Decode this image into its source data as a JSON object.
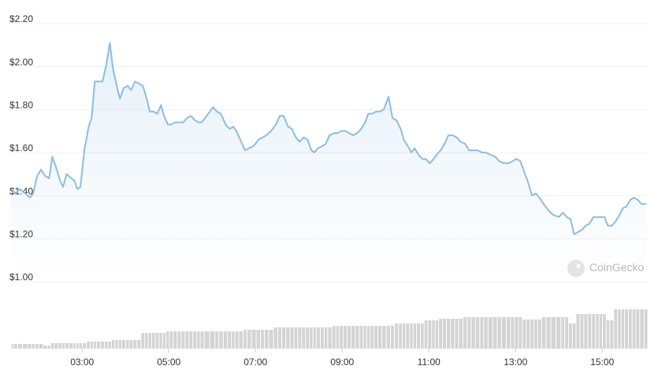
{
  "chart_data": {
    "type": "line",
    "watermark": "CoinGecko",
    "x": [
      1.36,
      1.47,
      1.56,
      1.69,
      1.8,
      1.87,
      1.96,
      2.05,
      2.15,
      2.24,
      2.31,
      2.4,
      2.49,
      2.56,
      2.64,
      2.75,
      2.82,
      2.89,
      2.96,
      3.05,
      3.15,
      3.22,
      3.29,
      3.38,
      3.47,
      3.56,
      3.64,
      3.71,
      3.8,
      3.87,
      3.96,
      4.05,
      4.13,
      4.22,
      4.31,
      4.4,
      4.49,
      4.56,
      4.65,
      4.73,
      4.82,
      4.89,
      4.98,
      5.05,
      5.15,
      5.24,
      5.33,
      5.42,
      5.51,
      5.6,
      5.69,
      5.76,
      5.87,
      6.02,
      6.11,
      6.2,
      6.31,
      6.4,
      6.49,
      6.56,
      6.67,
      6.76,
      6.85,
      6.96,
      7.07,
      7.16,
      7.25,
      7.36,
      7.47,
      7.56,
      7.65,
      7.75,
      7.84,
      7.93,
      8.02,
      8.11,
      8.2,
      8.29,
      8.36,
      8.44,
      8.55,
      8.62,
      8.71,
      8.82,
      8.89,
      8.98,
      9.07,
      9.16,
      9.25,
      9.35,
      9.44,
      9.53,
      9.6,
      9.69,
      9.78,
      9.87,
      9.96,
      10.07,
      10.16,
      10.25,
      10.35,
      10.42,
      10.51,
      10.6,
      10.67,
      10.76,
      10.85,
      10.93,
      11.02,
      11.11,
      11.18,
      11.27,
      11.36,
      11.45,
      11.55,
      11.64,
      11.73,
      11.84,
      11.93,
      12.02,
      12.13,
      12.22,
      12.31,
      12.42,
      12.53,
      12.62,
      12.73,
      12.84,
      12.93,
      13.02,
      13.11,
      13.2,
      13.29,
      13.38,
      13.47,
      13.55,
      13.65,
      13.76,
      13.87,
      14.0,
      14.09,
      14.18,
      14.27,
      14.35,
      14.44,
      14.53,
      14.62,
      14.71,
      14.8,
      14.89,
      14.96,
      15.05,
      15.13,
      15.22,
      15.31,
      15.4,
      15.47,
      15.56,
      15.65,
      15.73,
      15.82,
      15.91,
      16.02
    ],
    "series": [
      {
        "color": "#8bbde3",
        "values": [
          1.42,
          1.4,
          1.42,
          1.4,
          1.38,
          1.4,
          1.48,
          1.51,
          1.48,
          1.47,
          1.57,
          1.52,
          1.46,
          1.43,
          1.49,
          1.47,
          1.46,
          1.42,
          1.43,
          1.6,
          1.71,
          1.75,
          1.92,
          1.92,
          1.92,
          2.0,
          2.1,
          1.98,
          1.9,
          1.84,
          1.89,
          1.9,
          1.88,
          1.92,
          1.91,
          1.9,
          1.84,
          1.78,
          1.78,
          1.77,
          1.81,
          1.76,
          1.72,
          1.72,
          1.73,
          1.73,
          1.73,
          1.75,
          1.76,
          1.74,
          1.73,
          1.73,
          1.76,
          1.8,
          1.78,
          1.77,
          1.72,
          1.7,
          1.71,
          1.69,
          1.64,
          1.6,
          1.61,
          1.62,
          1.65,
          1.66,
          1.67,
          1.69,
          1.72,
          1.76,
          1.76,
          1.71,
          1.7,
          1.66,
          1.64,
          1.66,
          1.65,
          1.6,
          1.59,
          1.61,
          1.62,
          1.63,
          1.67,
          1.68,
          1.68,
          1.69,
          1.69,
          1.68,
          1.67,
          1.68,
          1.7,
          1.73,
          1.77,
          1.77,
          1.78,
          1.78,
          1.79,
          1.85,
          1.75,
          1.74,
          1.7,
          1.65,
          1.62,
          1.59,
          1.61,
          1.58,
          1.56,
          1.56,
          1.54,
          1.56,
          1.58,
          1.6,
          1.63,
          1.67,
          1.67,
          1.66,
          1.64,
          1.63,
          1.6,
          1.6,
          1.6,
          1.59,
          1.59,
          1.58,
          1.57,
          1.55,
          1.54,
          1.54,
          1.55,
          1.56,
          1.55,
          1.5,
          1.45,
          1.39,
          1.4,
          1.38,
          1.35,
          1.32,
          1.3,
          1.29,
          1.31,
          1.29,
          1.28,
          1.21,
          1.22,
          1.23,
          1.25,
          1.26,
          1.29,
          1.29,
          1.29,
          1.29,
          1.25,
          1.25,
          1.27,
          1.3,
          1.33,
          1.34,
          1.37,
          1.38,
          1.37,
          1.35,
          1.35
        ]
      },
      {
        "type": "bar",
        "axis": "y2",
        "color": "#d4d4d4",
        "values": [
          6,
          6,
          6,
          6,
          6,
          6,
          6,
          6,
          4,
          4,
          7,
          7,
          7,
          7,
          7,
          7,
          7,
          7,
          7,
          7,
          9,
          9,
          9,
          9,
          9,
          9,
          9,
          11,
          11,
          11,
          11,
          11,
          11,
          11,
          11,
          20,
          20,
          20,
          20,
          20,
          20,
          20,
          22,
          22,
          22,
          22,
          22,
          22,
          22,
          22,
          22,
          22,
          22,
          22,
          22,
          22,
          22,
          22,
          22,
          22,
          22,
          24,
          24,
          24,
          24,
          24,
          24,
          24,
          27,
          27,
          27,
          27,
          27,
          27,
          27,
          27,
          27,
          27,
          27,
          27,
          27,
          27,
          27,
          29,
          29,
          29,
          29,
          29,
          29,
          29,
          29,
          29,
          29,
          29,
          29,
          29,
          29,
          29,
          29,
          32,
          32,
          32,
          32,
          32,
          32,
          32,
          32,
          36,
          36,
          36,
          36,
          38,
          38,
          38,
          38,
          38,
          38,
          40,
          40,
          40,
          40,
          40,
          40,
          40,
          40,
          40,
          40,
          40,
          40,
          40,
          40,
          37,
          37,
          37,
          37,
          37,
          40,
          40,
          40,
          40,
          40,
          40,
          32,
          32,
          44,
          44,
          44,
          44,
          44,
          44,
          44,
          44,
          36,
          36,
          50,
          50,
          50,
          50,
          50,
          50,
          50,
          50,
          50
        ]
      }
    ],
    "xlim": [
      1.36,
      16.05
    ],
    "xticks": [
      {
        "value": 3,
        "label": "03:00"
      },
      {
        "value": 5,
        "label": "05:00"
      },
      {
        "value": 7,
        "label": "07:00"
      },
      {
        "value": 9,
        "label": "09:00"
      },
      {
        "value": 11,
        "label": "11:00"
      },
      {
        "value": 13,
        "label": "13:00"
      },
      {
        "value": 15,
        "label": "15:00"
      }
    ],
    "ylim": [
      1.0,
      2.2
    ],
    "yticks": [
      {
        "value": 1.0,
        "label": "$1.00"
      },
      {
        "value": 1.2,
        "label": "$1.20"
      },
      {
        "value": 1.4,
        "label": "$1.40"
      },
      {
        "value": 1.6,
        "label": "$1.60"
      },
      {
        "value": 1.8,
        "label": "$1.80"
      },
      {
        "value": 2.0,
        "label": "$2.00"
      },
      {
        "value": 2.2,
        "label": "$2.20"
      }
    ],
    "y2lim": [
      0,
      60
    ],
    "grid": true
  }
}
